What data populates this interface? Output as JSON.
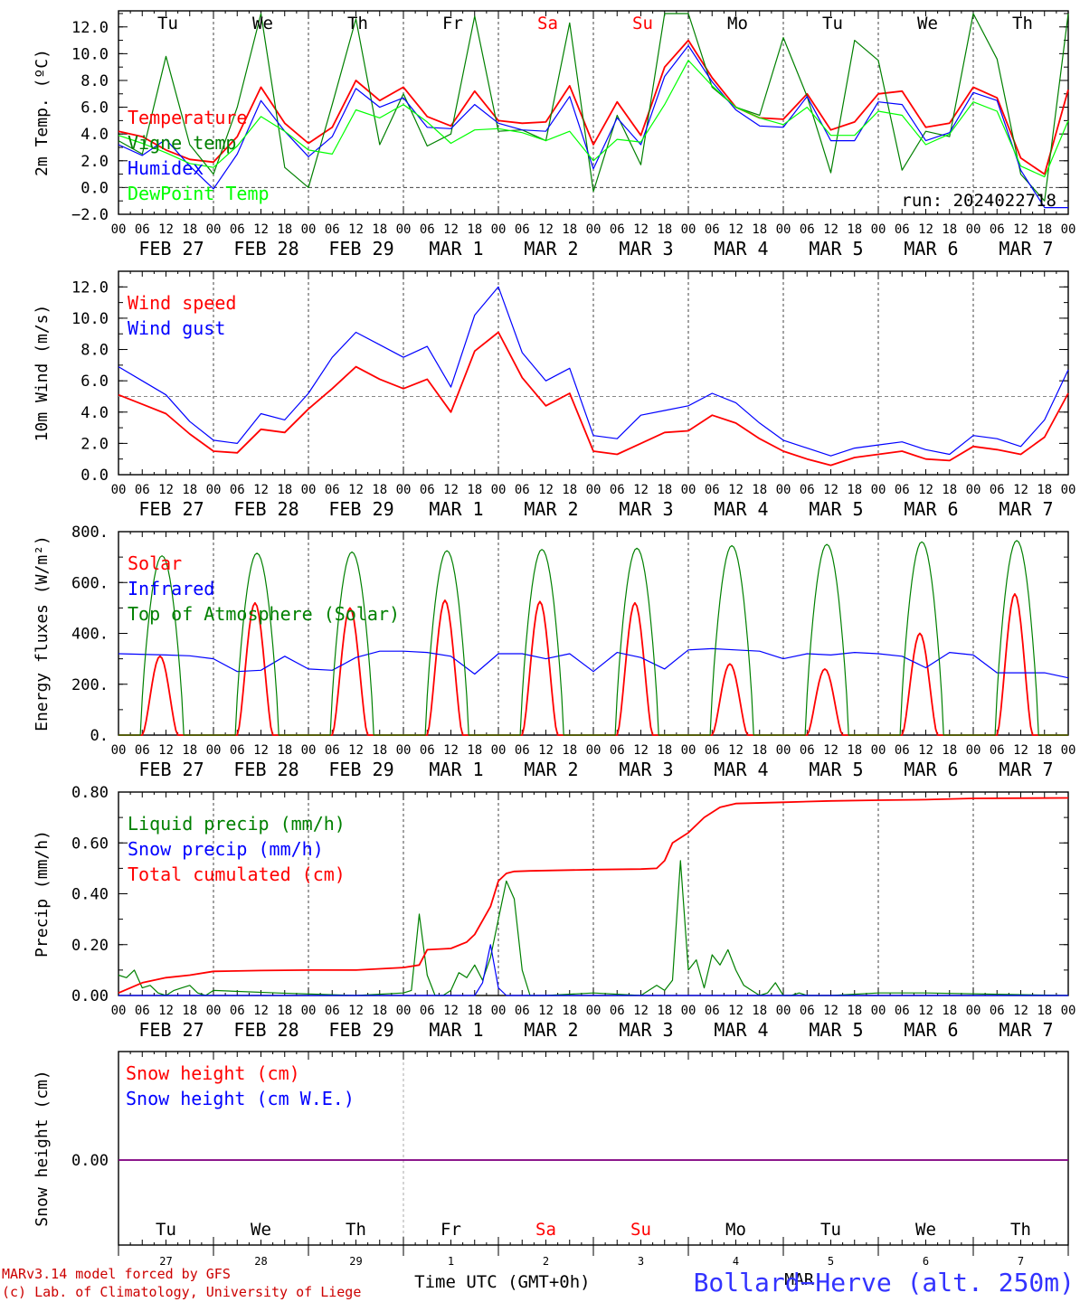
{
  "colors": {
    "red": "#ff0000",
    "green": "#008000",
    "blue": "#0000ff",
    "lightgreen": "#00ff00",
    "purple": "#800080",
    "title_blue": "#3333ff",
    "footer_red": "#cc0000",
    "grid": "#555555",
    "ref": "#888888"
  },
  "days": {
    "weekdays": [
      "Tu",
      "We",
      "Th",
      "Fr",
      "Sa",
      "Su",
      "Mo",
      "Tu",
      "We",
      "Th"
    ],
    "weekend_flags": [
      false,
      false,
      false,
      false,
      true,
      true,
      false,
      false,
      false,
      false
    ],
    "date_labels": [
      "FEB 27",
      "FEB 28",
      "FEB 29",
      "MAR  1",
      "MAR  2",
      "MAR  3",
      "MAR  4",
      "MAR  5",
      "MAR  6",
      "MAR  7"
    ],
    "day_numbers": [
      "27",
      "28",
      "29",
      "1",
      "2",
      "3",
      "4",
      "5",
      "6",
      "7"
    ],
    "hour_labels": [
      "00",
      "06",
      "12",
      "18"
    ],
    "final_hour": "00"
  },
  "footer": {
    "model_line": "MARv3.14 model forced by GFS",
    "lab_line": "(c) Lab. of Climatology, University of Liege",
    "time_axis_label": "Time UTC (GMT+0h)",
    "month_label": "MAR",
    "station": "Bollard−Herve (alt. 250m)"
  },
  "chart_data": [
    {
      "type": "line",
      "ylabel": "2m Temp. (ºC)",
      "ylim": [
        -2,
        13.2
      ],
      "yticks": [
        -2,
        0,
        2,
        4,
        6,
        8,
        10,
        12
      ],
      "ytick_labels": [
        "−2.0",
        "0.0",
        "2.0",
        "4.0",
        "6.0",
        "8.0",
        "10.0",
        "12.0"
      ],
      "reference_line": 0,
      "annotation": "run: 2024022718",
      "x_unit": "hours since FEB 27 00 UTC",
      "series": [
        {
          "name": "Temperature",
          "color": "red",
          "x": [
            0,
            6,
            12,
            18,
            24,
            30,
            36,
            42,
            48,
            54,
            60,
            66,
            72,
            78,
            84,
            90,
            96,
            102,
            108,
            114,
            120,
            126,
            132,
            138,
            144,
            150,
            156,
            162,
            168,
            174,
            180,
            186,
            192,
            198,
            204,
            210,
            216,
            222,
            228,
            234,
            240
          ],
          "values": [
            4.2,
            3.8,
            2.8,
            2.1,
            1.9,
            3.8,
            7.5,
            4.8,
            3.3,
            4.5,
            8.0,
            6.5,
            7.5,
            5.3,
            4.6,
            7.2,
            5.0,
            4.8,
            4.9,
            7.6,
            3.2,
            6.4,
            3.9,
            9.0,
            11.0,
            8.2,
            6.0,
            5.2,
            5.1,
            7.0,
            4.3,
            4.9,
            7.0,
            7.2,
            4.5,
            4.8,
            7.5,
            6.7,
            2.2,
            1.0,
            7.3
          ]
        },
        {
          "name": "Vigne temp",
          "color": "green",
          "x": [
            0,
            6,
            12,
            18,
            24,
            30,
            36,
            42,
            48,
            54,
            60,
            66,
            72,
            78,
            84,
            90,
            96,
            102,
            108,
            114,
            120,
            126,
            132,
            138,
            144,
            150,
            156,
            162,
            168,
            174,
            180,
            186,
            192,
            198,
            204,
            210,
            216,
            222,
            228,
            234,
            240
          ],
          "values": [
            3.5,
            2.5,
            9.8,
            3.2,
            1.0,
            6.0,
            13.0,
            1.5,
            0.0,
            6.2,
            12.6,
            3.2,
            7.0,
            3.1,
            4.0,
            12.8,
            4.2,
            4.3,
            3.5,
            12.3,
            -0.3,
            5.4,
            1.7,
            13.0,
            13.0,
            7.5,
            6.0,
            5.4,
            11.2,
            6.8,
            1.1,
            11.0,
            9.5,
            1.3,
            4.2,
            3.8,
            13.0,
            9.6,
            1.0,
            -1.0,
            13.0
          ]
        },
        {
          "name": "Humidex",
          "color": "blue",
          "x": [
            0,
            6,
            12,
            18,
            24,
            30,
            36,
            42,
            48,
            54,
            60,
            66,
            72,
            78,
            84,
            90,
            96,
            102,
            108,
            114,
            120,
            126,
            132,
            138,
            144,
            150,
            156,
            162,
            168,
            174,
            180,
            186,
            192,
            198,
            204,
            210,
            216,
            222,
            228,
            234,
            240
          ],
          "values": [
            3.2,
            2.4,
            3.6,
            1.6,
            -0.1,
            2.5,
            6.5,
            4.2,
            2.3,
            3.8,
            7.4,
            6.0,
            6.7,
            4.5,
            4.4,
            6.2,
            4.8,
            4.3,
            4.2,
            6.8,
            1.4,
            5.2,
            3.2,
            8.3,
            10.6,
            7.9,
            5.8,
            4.6,
            4.5,
            6.8,
            3.5,
            3.5,
            6.4,
            6.2,
            3.5,
            4.1,
            7.1,
            6.5,
            1.3,
            -1.5,
            -1.5
          ]
        },
        {
          "name": "DewPoint Temp",
          "color": "lightgreen",
          "x": [
            0,
            6,
            12,
            18,
            24,
            30,
            36,
            42,
            48,
            54,
            60,
            66,
            72,
            78,
            84,
            90,
            96,
            102,
            108,
            114,
            120,
            126,
            132,
            138,
            144,
            150,
            156,
            162,
            168,
            174,
            180,
            186,
            192,
            198,
            204,
            210,
            216,
            222,
            228,
            234,
            240
          ],
          "values": [
            3.9,
            3.3,
            2.6,
            1.8,
            1.5,
            3.1,
            5.3,
            4.2,
            2.8,
            2.5,
            5.8,
            5.2,
            6.2,
            4.9,
            3.3,
            4.3,
            4.4,
            4.1,
            3.5,
            4.2,
            2.0,
            3.6,
            3.4,
            6.2,
            9.5,
            7.6,
            6.0,
            5.2,
            4.7,
            6.0,
            3.9,
            3.9,
            5.7,
            5.4,
            3.2,
            4.0,
            6.4,
            5.7,
            1.6,
            0.8,
            5.0
          ]
        }
      ]
    },
    {
      "type": "line",
      "ylabel": "10m Wind (m/s)",
      "ylim": [
        0,
        13.0
      ],
      "yticks": [
        0,
        2,
        4,
        6,
        8,
        10,
        12
      ],
      "ytick_labels": [
        "0.0",
        "2.0",
        "4.0",
        "6.0",
        "8.0",
        "10.0",
        "12.0"
      ],
      "reference_line": 5,
      "x_unit": "hours since FEB 27 00 UTC",
      "series": [
        {
          "name": "Wind speed",
          "color": "red",
          "x": [
            0,
            6,
            12,
            18,
            24,
            30,
            36,
            42,
            48,
            54,
            60,
            66,
            72,
            78,
            84,
            90,
            96,
            102,
            108,
            114,
            120,
            126,
            132,
            138,
            144,
            150,
            156,
            162,
            168,
            174,
            180,
            186,
            192,
            198,
            204,
            210,
            216,
            222,
            228,
            234,
            240
          ],
          "values": [
            5.1,
            4.5,
            3.9,
            2.6,
            1.5,
            1.4,
            2.9,
            2.7,
            4.2,
            5.5,
            6.9,
            6.1,
            5.5,
            6.1,
            4.0,
            7.9,
            9.1,
            6.2,
            4.4,
            5.2,
            1.5,
            1.3,
            2.0,
            2.7,
            2.8,
            3.8,
            3.3,
            2.3,
            1.5,
            1.0,
            0.6,
            1.1,
            1.3,
            1.5,
            1.0,
            0.9,
            1.8,
            1.6,
            1.3,
            2.4,
            5.2
          ]
        },
        {
          "name": "Wind gust",
          "color": "blue",
          "x": [
            0,
            6,
            12,
            18,
            24,
            30,
            36,
            42,
            48,
            54,
            60,
            66,
            72,
            78,
            84,
            90,
            96,
            102,
            108,
            114,
            120,
            126,
            132,
            138,
            144,
            150,
            156,
            162,
            168,
            174,
            180,
            186,
            192,
            198,
            204,
            210,
            216,
            222,
            228,
            234,
            240
          ],
          "values": [
            6.9,
            6.0,
            5.1,
            3.4,
            2.2,
            2.0,
            3.9,
            3.5,
            5.2,
            7.5,
            9.1,
            8.3,
            7.5,
            8.2,
            5.6,
            10.2,
            12.0,
            7.8,
            6.0,
            6.8,
            2.5,
            2.3,
            3.8,
            4.1,
            4.4,
            5.2,
            4.6,
            3.3,
            2.2,
            1.7,
            1.2,
            1.7,
            1.9,
            2.1,
            1.6,
            1.3,
            2.5,
            2.3,
            1.8,
            3.5,
            6.7
          ]
        }
      ]
    },
    {
      "type": "line",
      "ylabel": "Energy fluxes (W/m²)",
      "ylim": [
        0,
        800
      ],
      "yticks": [
        0,
        200,
        400,
        600,
        800
      ],
      "ytick_labels": [
        "0.",
        "200.",
        "400.",
        "600.",
        "800."
      ],
      "x_unit": "hours since FEB 27 00 UTC",
      "series": [
        {
          "name": "Solar",
          "color": "red",
          "peak_hours": [
            10.5,
            34.5,
            58.5,
            82.5,
            106.5,
            130.5,
            154.5,
            178.5,
            202.5,
            226.5
          ],
          "daily_peaks": [
            310,
            520,
            500,
            530,
            525,
            520,
            280,
            260,
            400,
            555
          ]
        },
        {
          "name": "Infrared",
          "color": "blue",
          "x": [
            0,
            12,
            18,
            24,
            30,
            36,
            42,
            48,
            54,
            60,
            66,
            72,
            78,
            84,
            90,
            96,
            102,
            108,
            114,
            120,
            126,
            132,
            138,
            144,
            150,
            156,
            162,
            168,
            174,
            180,
            186,
            192,
            198,
            204,
            210,
            216,
            222,
            228,
            234,
            240
          ],
          "values": [
            320,
            315,
            312,
            300,
            250,
            255,
            310,
            260,
            255,
            305,
            330,
            330,
            325,
            310,
            240,
            320,
            320,
            300,
            320,
            250,
            325,
            305,
            260,
            335,
            340,
            335,
            330,
            300,
            320,
            315,
            325,
            320,
            310,
            265,
            325,
            315,
            245,
            245,
            245,
            225
          ]
        },
        {
          "name": "Top of Atmosphere (Solar)",
          "color": "green",
          "peak_hours": [
            11,
            35,
            59,
            83,
            107,
            131,
            155,
            179,
            203,
            227
          ],
          "daily_peaks": [
            705,
            715,
            720,
            725,
            730,
            735,
            745,
            750,
            760,
            765
          ]
        }
      ]
    },
    {
      "type": "line",
      "ylabel": "Precip (mm/h)",
      "ylim": [
        0,
        0.8
      ],
      "yticks": [
        0,
        0.2,
        0.4,
        0.6,
        0.8
      ],
      "ytick_labels": [
        "0.00",
        "0.20",
        "0.40",
        "0.60",
        "0.80"
      ],
      "x_unit": "hours since FEB 27 00 UTC",
      "series": [
        {
          "name": "Liquid precip (mm/h)",
          "color": "green",
          "x": [
            0,
            2,
            4,
            6,
            8,
            10,
            12,
            14,
            16,
            18,
            20,
            22,
            24,
            40,
            60,
            72,
            74,
            76,
            78,
            80,
            82,
            84,
            86,
            88,
            90,
            92,
            94,
            96,
            98,
            100,
            102,
            104,
            106,
            108,
            120,
            132,
            136,
            138,
            140,
            142,
            144,
            146,
            148,
            150,
            152,
            154,
            156,
            158,
            160,
            162,
            164,
            166,
            168,
            170,
            172,
            174,
            176,
            178,
            180,
            192,
            204,
            240
          ],
          "values": [
            0.08,
            0.07,
            0.1,
            0.03,
            0.04,
            0.01,
            0.0,
            0.02,
            0.03,
            0.04,
            0.01,
            0.0,
            0.02,
            0.01,
            0.0,
            0.01,
            0.02,
            0.32,
            0.08,
            0.0,
            0.0,
            0.02,
            0.09,
            0.07,
            0.12,
            0.06,
            0.15,
            0.3,
            0.45,
            0.38,
            0.1,
            0.0,
            0.0,
            0.0,
            0.01,
            0.0,
            0.04,
            0.02,
            0.06,
            0.53,
            0.1,
            0.14,
            0.03,
            0.16,
            0.12,
            0.18,
            0.1,
            0.04,
            0.02,
            0.0,
            0.01,
            0.05,
            0.0,
            0.0,
            0.01,
            0.0,
            0.0,
            0.0,
            0.0,
            0.01,
            0.01,
            0.0
          ]
        },
        {
          "name": "Snow precip (mm/h)",
          "color": "blue",
          "x": [
            0,
            90,
            92,
            94,
            96,
            98,
            100,
            102,
            110,
            240
          ],
          "values": [
            0.0,
            0.0,
            0.05,
            0.2,
            0.03,
            0.0,
            0.0,
            0.0,
            0.0,
            0.0
          ]
        },
        {
          "name": "Total cumulated (cm)",
          "color": "red",
          "x": [
            0,
            6,
            12,
            18,
            24,
            36,
            48,
            60,
            72,
            76,
            78,
            84,
            88,
            90,
            94,
            96,
            98,
            100,
            104,
            120,
            132,
            136,
            138,
            140,
            144,
            148,
            152,
            156,
            168,
            180,
            192,
            204,
            216,
            240
          ],
          "values": [
            0.01,
            0.05,
            0.07,
            0.08,
            0.095,
            0.098,
            0.1,
            0.1,
            0.11,
            0.12,
            0.18,
            0.185,
            0.21,
            0.24,
            0.35,
            0.45,
            0.48,
            0.488,
            0.49,
            0.495,
            0.497,
            0.5,
            0.53,
            0.6,
            0.64,
            0.7,
            0.74,
            0.755,
            0.76,
            0.765,
            0.768,
            0.77,
            0.775,
            0.777
          ]
        }
      ]
    },
    {
      "type": "line",
      "ylabel": "Snow height (cm)",
      "yticks": [
        0
      ],
      "ytick_labels": [
        "0.00"
      ],
      "x_unit": "hours since FEB 27 00 UTC",
      "series": [
        {
          "name": "Snow height (cm)",
          "color": "red",
          "x": [
            0,
            240
          ],
          "values": [
            0,
            0
          ]
        },
        {
          "name": "Snow height (cm W.E.)",
          "color": "blue",
          "x": [
            0,
            240
          ],
          "values": [
            0,
            0
          ]
        }
      ]
    }
  ]
}
